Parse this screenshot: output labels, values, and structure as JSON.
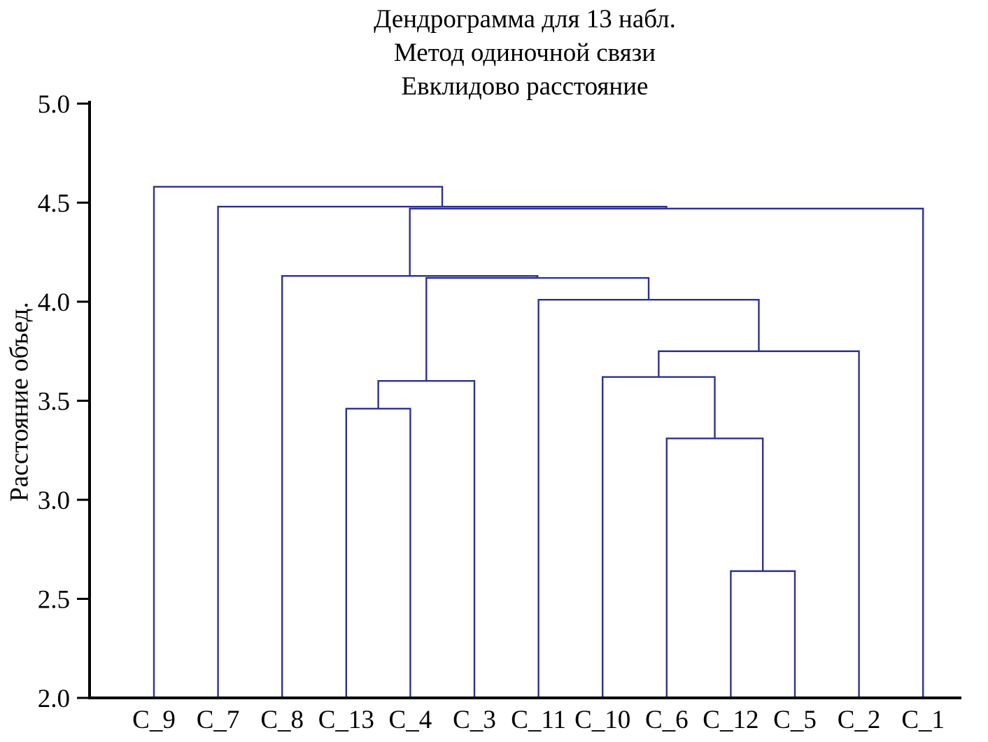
{
  "chart_data": {
    "type": "dendrogram",
    "orientation": "vertical",
    "title_lines": [
      "Дендрограмма для 13 набл.",
      "Метод одиночной связи",
      "Евклидово расстояние"
    ],
    "ylabel": "Расстояние объед.",
    "ylim": [
      2.0,
      5.0
    ],
    "yticks": [
      5.0,
      4.5,
      4.0,
      3.5,
      3.0,
      2.5,
      2.0
    ],
    "ytick_labels": [
      "5.0",
      "4.5",
      "4.0",
      "3.5",
      "3.0",
      "2.5",
      "2.0"
    ],
    "grid": false,
    "legend": null,
    "leaves": [
      "C_9",
      "C_7",
      "C_8",
      "C_13",
      "C_4",
      "C_3",
      "C_11",
      "C_10",
      "C_6",
      "C_12",
      "C_5",
      "C_2",
      "C_1"
    ],
    "leaf_baseline": 2.0,
    "merges": [
      {
        "id": "M1",
        "left": "C_12",
        "right": "C_5",
        "height": 2.64
      },
      {
        "id": "M2",
        "left": "C_6",
        "right": "M1",
        "height": 3.31
      },
      {
        "id": "M3",
        "left": "C_13",
        "right": "C_4",
        "height": 3.46
      },
      {
        "id": "M4",
        "left": "M3",
        "right": "C_3",
        "height": 3.6
      },
      {
        "id": "M5",
        "left": "C_10",
        "right": "M2",
        "height": 3.62
      },
      {
        "id": "M6",
        "left": "M5",
        "right": "C_2",
        "height": 3.75
      },
      {
        "id": "M7",
        "left": "C_11",
        "right": "M6",
        "height": 4.01
      },
      {
        "id": "M8",
        "left": "M4",
        "right": "M7",
        "height": 4.12
      },
      {
        "id": "M9",
        "left": "C_8",
        "right": "M8",
        "height": 4.13
      },
      {
        "id": "M10",
        "left": "M9",
        "right": "C_1",
        "height": 4.47
      },
      {
        "id": "M11",
        "left": "C_7",
        "right": "M10",
        "height": 4.48
      },
      {
        "id": "M12",
        "left": "C_9",
        "right": "M11",
        "height": 4.58
      }
    ],
    "colors": {
      "line": "#2e3192",
      "axis": "#000000",
      "text": "#000000"
    }
  }
}
